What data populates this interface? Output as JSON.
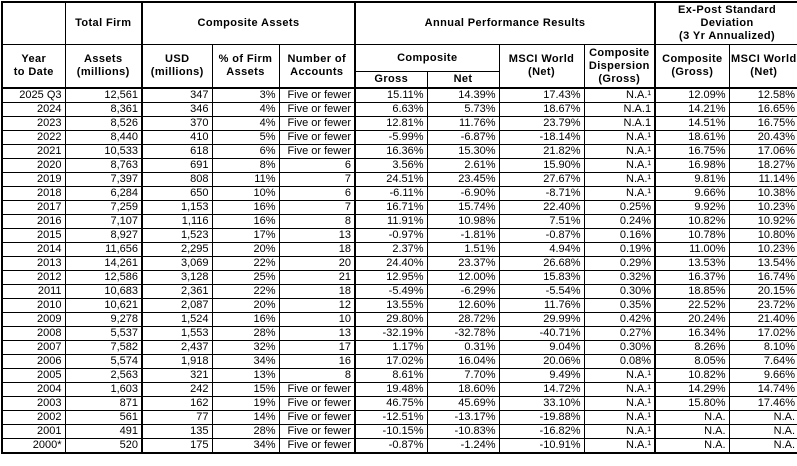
{
  "table": {
    "header": {
      "corner": "",
      "year": "Year\nto Date",
      "total_firm_group": "Total Firm",
      "assets": "Assets\n(millions)",
      "composite_assets_group": "Composite Assets",
      "usd": "USD\n(millions)",
      "pct_firm": "% of Firm\nAssets",
      "accounts": "Number of\nAccounts",
      "performance_group": "Annual Performance Results",
      "composite_sub": "Composite",
      "gross": "Gross",
      "net": "Net",
      "msci_world": "MSCI World\n(Net)",
      "dispersion": "Composite\nDispersion\n(Gross)",
      "expost_group": "Ex-Post Standard\nDeviation\n(3 Yr Annualized)",
      "sd_composite": "Composite\n(Gross)",
      "sd_msci": "MSCI World\n(Net)"
    },
    "rows": [
      {
        "year": "2025 Q3",
        "firm_assets": "12,561",
        "usd": "347",
        "pct_firm": "3%",
        "accounts": "Five or fewer",
        "gross": "15.11%",
        "net": "14.39%",
        "msci_world": "17.43%",
        "dispersion": "N.A.¹",
        "sd_composite": "12.09%",
        "sd_msci": "12.58%"
      },
      {
        "year": "2024",
        "firm_assets": "8,361",
        "usd": "346",
        "pct_firm": "4%",
        "accounts": "Five or fewer",
        "gross": "6.63%",
        "net": "5.73%",
        "msci_world": "18.67%",
        "dispersion": "N.A.1",
        "sd_composite": "14.21%",
        "sd_msci": "16.65%"
      },
      {
        "year": "2023",
        "firm_assets": "8,526",
        "usd": "370",
        "pct_firm": "4%",
        "accounts": "Five or fewer",
        "gross": "12.81%",
        "net": "11.76%",
        "msci_world": "23.79%",
        "dispersion": "N.A.1",
        "sd_composite": "14.51%",
        "sd_msci": "16.75%"
      },
      {
        "year": "2022",
        "firm_assets": "8,440",
        "usd": "410",
        "pct_firm": "5%",
        "accounts": "Five or fewer",
        "gross": "-5.99%",
        "net": "-6.87%",
        "msci_world": "-18.14%",
        "dispersion": "N.A.¹",
        "sd_composite": "18.61%",
        "sd_msci": "20.43%"
      },
      {
        "year": "2021",
        "firm_assets": "10,533",
        "usd": "618",
        "pct_firm": "6%",
        "accounts": "Five or fewer",
        "gross": "16.36%",
        "net": "15.30%",
        "msci_world": "21.82%",
        "dispersion": "N.A.¹",
        "sd_composite": "16.75%",
        "sd_msci": "17.06%"
      },
      {
        "year": "2020",
        "firm_assets": "8,763",
        "usd": "691",
        "pct_firm": "8%",
        "accounts": "6",
        "gross": "3.56%",
        "net": "2.61%",
        "msci_world": "15.90%",
        "dispersion": "N.A.¹",
        "sd_composite": "16.98%",
        "sd_msci": "18.27%"
      },
      {
        "year": "2019",
        "firm_assets": "7,397",
        "usd": "808",
        "pct_firm": "11%",
        "accounts": "7",
        "gross": "24.51%",
        "net": "23.45%",
        "msci_world": "27.67%",
        "dispersion": "N.A.¹",
        "sd_composite": "9.81%",
        "sd_msci": "11.14%"
      },
      {
        "year": "2018",
        "firm_assets": "6,284",
        "usd": "650",
        "pct_firm": "10%",
        "accounts": "6",
        "gross": "-6.11%",
        "net": "-6.90%",
        "msci_world": "-8.71%",
        "dispersion": "N.A.¹",
        "sd_composite": "9.66%",
        "sd_msci": "10.38%"
      },
      {
        "year": "2017",
        "firm_assets": "7,259",
        "usd": "1,153",
        "pct_firm": "16%",
        "accounts": "7",
        "gross": "16.71%",
        "net": "15.74%",
        "msci_world": "22.40%",
        "dispersion": "0.25%",
        "sd_composite": "9.92%",
        "sd_msci": "10.23%"
      },
      {
        "year": "2016",
        "firm_assets": "7,107",
        "usd": "1,116",
        "pct_firm": "16%",
        "accounts": "8",
        "gross": "11.91%",
        "net": "10.98%",
        "msci_world": "7.51%",
        "dispersion": "0.24%",
        "sd_composite": "10.82%",
        "sd_msci": "10.92%"
      },
      {
        "year": "2015",
        "firm_assets": "8,927",
        "usd": "1,523",
        "pct_firm": "17%",
        "accounts": "13",
        "gross": "-0.97%",
        "net": "-1.81%",
        "msci_world": "-0.87%",
        "dispersion": "0.16%",
        "sd_composite": "10.78%",
        "sd_msci": "10.80%"
      },
      {
        "year": "2014",
        "firm_assets": "11,656",
        "usd": "2,295",
        "pct_firm": "20%",
        "accounts": "18",
        "gross": "2.37%",
        "net": "1.51%",
        "msci_world": "4.94%",
        "dispersion": "0.19%",
        "sd_composite": "11.00%",
        "sd_msci": "10.23%"
      },
      {
        "year": "2013",
        "firm_assets": "14,261",
        "usd": "3,069",
        "pct_firm": "22%",
        "accounts": "20",
        "gross": "24.40%",
        "net": "23.37%",
        "msci_world": "26.68%",
        "dispersion": "0.29%",
        "sd_composite": "13.53%",
        "sd_msci": "13.54%"
      },
      {
        "year": "2012",
        "firm_assets": "12,586",
        "usd": "3,128",
        "pct_firm": "25%",
        "accounts": "21",
        "gross": "12.95%",
        "net": "12.00%",
        "msci_world": "15.83%",
        "dispersion": "0.32%",
        "sd_composite": "16.37%",
        "sd_msci": "16.74%"
      },
      {
        "year": "2011",
        "firm_assets": "10,683",
        "usd": "2,361",
        "pct_firm": "22%",
        "accounts": "18",
        "gross": "-5.49%",
        "net": "-6.29%",
        "msci_world": "-5.54%",
        "dispersion": "0.30%",
        "sd_composite": "18.85%",
        "sd_msci": "20.15%"
      },
      {
        "year": "2010",
        "firm_assets": "10,621",
        "usd": "2,087",
        "pct_firm": "20%",
        "accounts": "12",
        "gross": "13.55%",
        "net": "12.60%",
        "msci_world": "11.76%",
        "dispersion": "0.35%",
        "sd_composite": "22.52%",
        "sd_msci": "23.72%"
      },
      {
        "year": "2009",
        "firm_assets": "9,278",
        "usd": "1,524",
        "pct_firm": "16%",
        "accounts": "10",
        "gross": "29.80%",
        "net": "28.72%",
        "msci_world": "29.99%",
        "dispersion": "0.42%",
        "sd_composite": "20.24%",
        "sd_msci": "21.40%"
      },
      {
        "year": "2008",
        "firm_assets": "5,537",
        "usd": "1,553",
        "pct_firm": "28%",
        "accounts": "13",
        "gross": "-32.19%",
        "net": "-32.78%",
        "msci_world": "-40.71%",
        "dispersion": "0.27%",
        "sd_composite": "16.34%",
        "sd_msci": "17.02%"
      },
      {
        "year": "2007",
        "firm_assets": "7,582",
        "usd": "2,437",
        "pct_firm": "32%",
        "accounts": "17",
        "gross": "1.17%",
        "net": "0.31%",
        "msci_world": "9.04%",
        "dispersion": "0.30%",
        "sd_composite": "8.26%",
        "sd_msci": "8.10%"
      },
      {
        "year": "2006",
        "firm_assets": "5,574",
        "usd": "1,918",
        "pct_firm": "34%",
        "accounts": "16",
        "gross": "17.02%",
        "net": "16.04%",
        "msci_world": "20.06%",
        "dispersion": "0.08%",
        "sd_composite": "8.05%",
        "sd_msci": "7.64%"
      },
      {
        "year": "2005",
        "firm_assets": "2,563",
        "usd": "321",
        "pct_firm": "13%",
        "accounts": "8",
        "gross": "8.61%",
        "net": "7.70%",
        "msci_world": "9.49%",
        "dispersion": "N.A.¹",
        "sd_composite": "10.82%",
        "sd_msci": "9.66%"
      },
      {
        "year": "2004",
        "firm_assets": "1,603",
        "usd": "242",
        "pct_firm": "15%",
        "accounts": "Five or fewer",
        "gross": "19.48%",
        "net": "18.60%",
        "msci_world": "14.72%",
        "dispersion": "N.A.¹",
        "sd_composite": "14.29%",
        "sd_msci": "14.74%"
      },
      {
        "year": "2003",
        "firm_assets": "871",
        "usd": "162",
        "pct_firm": "19%",
        "accounts": "Five or fewer",
        "gross": "46.75%",
        "net": "45.69%",
        "msci_world": "33.10%",
        "dispersion": "N.A.¹",
        "sd_composite": "15.80%",
        "sd_msci": "17.46%"
      },
      {
        "year": "2002",
        "firm_assets": "561",
        "usd": "77",
        "pct_firm": "14%",
        "accounts": "Five or fewer",
        "gross": "-12.51%",
        "net": "-13.17%",
        "msci_world": "-19.88%",
        "dispersion": "N.A.¹",
        "sd_composite": "N.A.",
        "sd_msci": "N.A."
      },
      {
        "year": "2001",
        "firm_assets": "491",
        "usd": "135",
        "pct_firm": "28%",
        "accounts": "Five or fewer",
        "gross": "-10.15%",
        "net": "-10.83%",
        "msci_world": "-16.82%",
        "dispersion": "N.A.¹",
        "sd_composite": "N.A.",
        "sd_msci": "N.A."
      },
      {
        "year": "2000*",
        "firm_assets": "520",
        "usd": "175",
        "pct_firm": "34%",
        "accounts": "Five or fewer",
        "gross": "-0.87%",
        "net": "-1.24%",
        "msci_world": "-10.91%",
        "dispersion": "N.A.¹",
        "sd_composite": "N.A.",
        "sd_msci": "N.A."
      }
    ]
  }
}
